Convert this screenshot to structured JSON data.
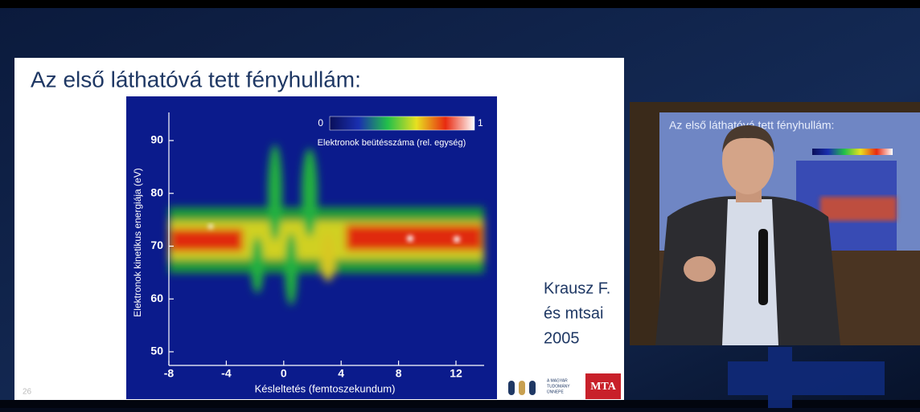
{
  "slide": {
    "title": "Az első láthatóvá tett fényhullám:",
    "page_number": "26",
    "citation": [
      "Krausz F.",
      "és mtsai",
      "2005"
    ],
    "logos": {
      "magyar_tudomany": [
        "A MAGYAR",
        "TUDOMÁNY",
        "ÜNNEPE"
      ],
      "mta": "MTA"
    }
  },
  "figure": {
    "y_label": "Elektronok kinetikus energiája (eV)",
    "x_label": "Késleltetés (femtoszekundum)",
    "y_ticks": [
      "50",
      "60",
      "70",
      "80",
      "90"
    ],
    "x_ticks": [
      "-8",
      "-4",
      "0",
      "4",
      "8",
      "12"
    ],
    "colorbar": {
      "min": "0",
      "max": "1",
      "label": "Elektronok beütésszáma (rel. egység)"
    }
  },
  "inset": {
    "title": "Az első láthatóvá tett fényhullám:"
  }
}
